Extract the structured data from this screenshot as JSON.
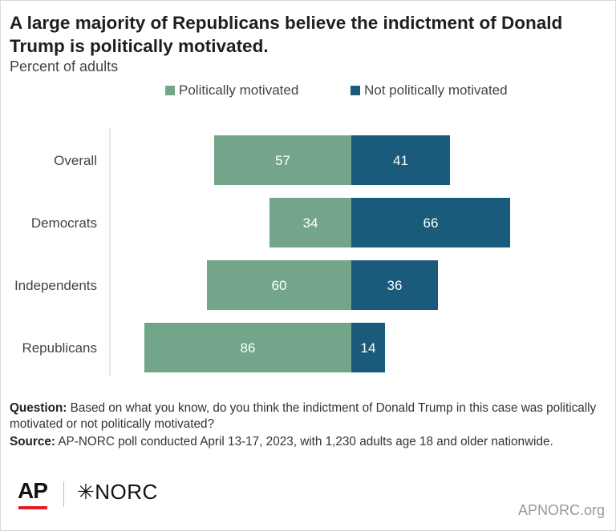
{
  "title": "A large majority of Republicans believe the indictment of Donald Trump is politically motivated.",
  "subtitle": "Percent of adults",
  "colors": {
    "politically_motivated": "#72a58a",
    "not_politically_motivated": "#1a5a7a"
  },
  "legend": [
    {
      "label": "Politically motivated",
      "color": "#72a58a"
    },
    {
      "label": "Not politically motivated",
      "color": "#1a5a7a"
    }
  ],
  "chart_data": {
    "type": "bar",
    "orientation": "horizontal-diverging",
    "categories": [
      "Overall",
      "Democrats",
      "Independents",
      "Republicans"
    ],
    "series": [
      {
        "name": "Politically motivated",
        "values": [
          57,
          34,
          60,
          86
        ]
      },
      {
        "name": "Not politically motivated",
        "values": [
          41,
          66,
          36,
          14
        ]
      }
    ],
    "legend_position": "top",
    "grid": false
  },
  "notes": {
    "question_label": "Question:",
    "question_text": "Based on what you know, do you think the indictment of Donald Trump in this case was politically motivated or not politically motivated?",
    "source_label": "Source:",
    "source_text": "AP-NORC poll conducted April 13-17, 2023, with 1,230 adults age 18 and older nationwide."
  },
  "logos": {
    "ap": "AP",
    "norc": "✳NORC"
  },
  "site": "APNORC.org"
}
